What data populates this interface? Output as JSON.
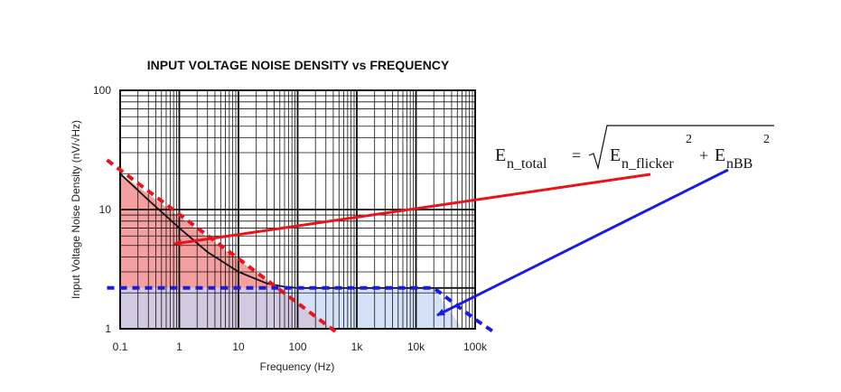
{
  "chart_data": {
    "type": "line",
    "title": "INPUT VOLTAGE NOISE DENSITY vs FREQUENCY",
    "xlabel": "Frequency (Hz)",
    "ylabel": "Input Voltage Noise Density (nV/√Hz)",
    "x_scale": "log",
    "y_scale": "log",
    "xlim": [
      0.1,
      100000
    ],
    "ylim": [
      1,
      100
    ],
    "grid": true,
    "x_ticks": [
      {
        "value": 0.1,
        "label": "0.1"
      },
      {
        "value": 1,
        "label": "1"
      },
      {
        "value": 10,
        "label": "10"
      },
      {
        "value": 100,
        "label": "100"
      },
      {
        "value": 1000,
        "label": "1k"
      },
      {
        "value": 10000,
        "label": "10k"
      },
      {
        "value": 100000,
        "label": "100k"
      }
    ],
    "y_ticks": [
      {
        "value": 1,
        "label": "1"
      },
      {
        "value": 10,
        "label": "10"
      },
      {
        "value": 100,
        "label": "100"
      }
    ],
    "series": [
      {
        "color": "#111111",
        "style": "solid",
        "x": [
          0.1,
          0.3,
          1,
          3,
          10,
          30,
          60,
          100,
          200,
          100000
        ],
        "y": [
          20,
          12,
          7,
          4.4,
          3.0,
          2.4,
          2.25,
          2.2,
          2.2,
          2.2
        ]
      },
      {
        "color": "#e8141c",
        "style": "dashed",
        "x": [
          0.06,
          500
        ],
        "y": [
          26,
          0.9
        ]
      },
      {
        "color": "#1a1ae6",
        "style": "dashed",
        "x": [
          0.06,
          20000,
          100000,
          200000
        ],
        "y": [
          2.2,
          2.2,
          1.2,
          0.95
        ]
      }
    ],
    "shaded_regions": [
      {
        "name": "flicker",
        "color": "#f08080",
        "x": [
          0.1,
          400
        ],
        "y_top": [
          20,
          1
        ]
      },
      {
        "name": "broadband",
        "color": "#c6d8f5",
        "x": [
          0.1,
          20000,
          60000
        ],
        "y_top": [
          2.2,
          2.2,
          1
        ]
      }
    ]
  },
  "annotation": {
    "equation": {
      "lhs_main": "E",
      "lhs_sub": "n_total",
      "eq": "=",
      "t1_main": "E",
      "t1_sub": "n_flicker",
      "t1_sup": "2",
      "plus": "+",
      "t2_main": "E",
      "t2_sub": "nBB",
      "t2_sup": "2"
    },
    "arrow_colors": {
      "flicker": "#e8141c",
      "broadband": "#1a1ae6"
    }
  }
}
